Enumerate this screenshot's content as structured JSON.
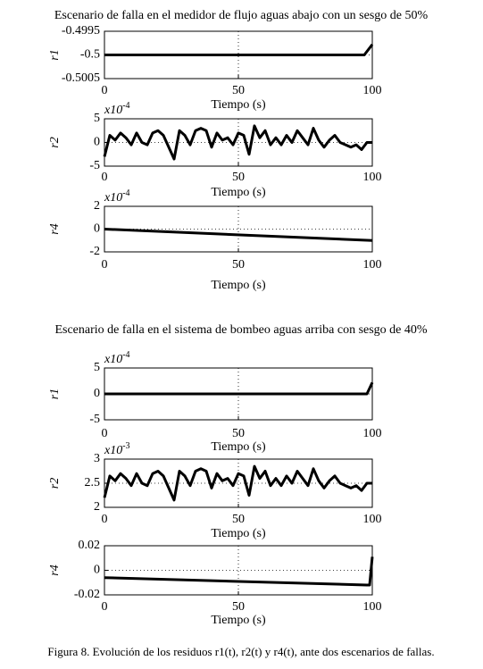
{
  "chart_data": [
    {
      "type": "line",
      "title": "Escenario de falla en el medidor de flujo aguas abajo con un sesgo de 50%",
      "ylabel": "r1",
      "xlabel": "Tiempo (s)",
      "x": [
        0,
        97,
        100
      ],
      "values": [
        -0.5,
        -0.5,
        -0.49978
      ],
      "color": "#000000",
      "xlim": [
        0,
        100
      ],
      "xticks": [
        0,
        50,
        100
      ],
      "ylim": [
        -0.5005,
        -0.4995
      ],
      "yticks": [
        -0.5005,
        -0.5,
        -0.4995
      ],
      "grid": true
    },
    {
      "type": "line",
      "ylabel": "r2",
      "xlabel": "Tiempo (s)",
      "y_multiplier": "x10",
      "y_multiplier_exp": "-4",
      "x": [
        0,
        2,
        4,
        6,
        8,
        10,
        12,
        14,
        16,
        18,
        20,
        22,
        24,
        26,
        28,
        30,
        32,
        34,
        36,
        38,
        40,
        42,
        44,
        46,
        48,
        50,
        52,
        54,
        56,
        58,
        60,
        62,
        64,
        66,
        68,
        70,
        72,
        74,
        76,
        78,
        80,
        82,
        84,
        86,
        88,
        90,
        92,
        94,
        96,
        98,
        100
      ],
      "values": [
        -3,
        1.5,
        0.5,
        2,
        1,
        -0.5,
        2,
        0,
        -0.5,
        2,
        2.5,
        1.5,
        -1,
        -3.5,
        2.5,
        1.5,
        -0.5,
        2.5,
        3,
        2.5,
        -1,
        2,
        0.5,
        1,
        -0.5,
        2,
        1.5,
        -2.5,
        3.5,
        1,
        2.5,
        -0.5,
        1,
        -0.5,
        1.5,
        0,
        2.5,
        1,
        -0.5,
        3,
        0.5,
        -1,
        0.5,
        1.5,
        0,
        -0.5,
        -1,
        -0.5,
        -1.5,
        0,
        0
      ],
      "color": "#000000",
      "xlim": [
        0,
        100
      ],
      "xticks": [
        0,
        50,
        100
      ],
      "ylim": [
        -5,
        5
      ],
      "yticks": [
        -5,
        0,
        5
      ],
      "grid": true
    },
    {
      "type": "line",
      "ylabel": "r4",
      "xlabel": "Tiempo (s)",
      "y_multiplier": "x10",
      "y_multiplier_exp": "-4",
      "x": [
        0,
        100
      ],
      "values": [
        0,
        -1
      ],
      "color": "#000000",
      "xlim": [
        0,
        100
      ],
      "xticks": [
        0,
        50,
        100
      ],
      "ylim": [
        -2,
        2
      ],
      "yticks": [
        -2,
        0,
        2
      ],
      "grid": true
    },
    {
      "type": "line",
      "title": "Escenario de falla en el sistema de bombeo aguas arriba con sesgo de 40%",
      "ylabel": "r1",
      "xlabel": "Tiempo (s)",
      "y_multiplier": "x10",
      "y_multiplier_exp": "-4",
      "x": [
        0,
        98,
        100
      ],
      "values": [
        0,
        0,
        2.2
      ],
      "color": "#000000",
      "xlim": [
        0,
        100
      ],
      "xticks": [
        0,
        50,
        100
      ],
      "ylim": [
        -5,
        5
      ],
      "yticks": [
        -5,
        0,
        5
      ],
      "grid": true
    },
    {
      "type": "line",
      "ylabel": "r2",
      "xlabel": "Tiempo (s)",
      "y_multiplier": "x10",
      "y_multiplier_exp": "-3",
      "x": [
        0,
        2,
        4,
        6,
        8,
        10,
        12,
        14,
        16,
        18,
        20,
        22,
        24,
        26,
        28,
        30,
        32,
        34,
        36,
        38,
        40,
        42,
        44,
        46,
        48,
        50,
        52,
        54,
        56,
        58,
        60,
        62,
        64,
        66,
        68,
        70,
        72,
        74,
        76,
        78,
        80,
        82,
        84,
        86,
        88,
        90,
        92,
        94,
        96,
        98,
        100
      ],
      "values": [
        2.2,
        2.65,
        2.55,
        2.7,
        2.6,
        2.45,
        2.7,
        2.5,
        2.45,
        2.7,
        2.75,
        2.65,
        2.4,
        2.15,
        2.75,
        2.65,
        2.45,
        2.75,
        2.8,
        2.75,
        2.4,
        2.7,
        2.55,
        2.6,
        2.45,
        2.7,
        2.65,
        2.25,
        2.85,
        2.6,
        2.75,
        2.45,
        2.6,
        2.45,
        2.65,
        2.5,
        2.75,
        2.6,
        2.45,
        2.8,
        2.55,
        2.4,
        2.55,
        2.65,
        2.5,
        2.45,
        2.4,
        2.45,
        2.35,
        2.5,
        2.5
      ],
      "color": "#000000",
      "xlim": [
        0,
        100
      ],
      "xticks": [
        0,
        50,
        100
      ],
      "ylim": [
        2,
        3
      ],
      "yticks": [
        2,
        2.5,
        3
      ],
      "grid": true
    },
    {
      "type": "line",
      "ylabel": "r4",
      "xlabel": "Tiempo (s)",
      "x": [
        0,
        98,
        99,
        100
      ],
      "values": [
        -0.006,
        -0.012,
        -0.012,
        0.011
      ],
      "color": "#000000",
      "xlim": [
        0,
        100
      ],
      "xticks": [
        0,
        50,
        100
      ],
      "ylim": [
        -0.02,
        0.02
      ],
      "yticks": [
        -0.02,
        0,
        0.02
      ],
      "grid": true
    }
  ],
  "caption": "Figura 8. Evolución de los residuos r1(t), r2(t) y r4(t), ante dos escenarios de fallas."
}
